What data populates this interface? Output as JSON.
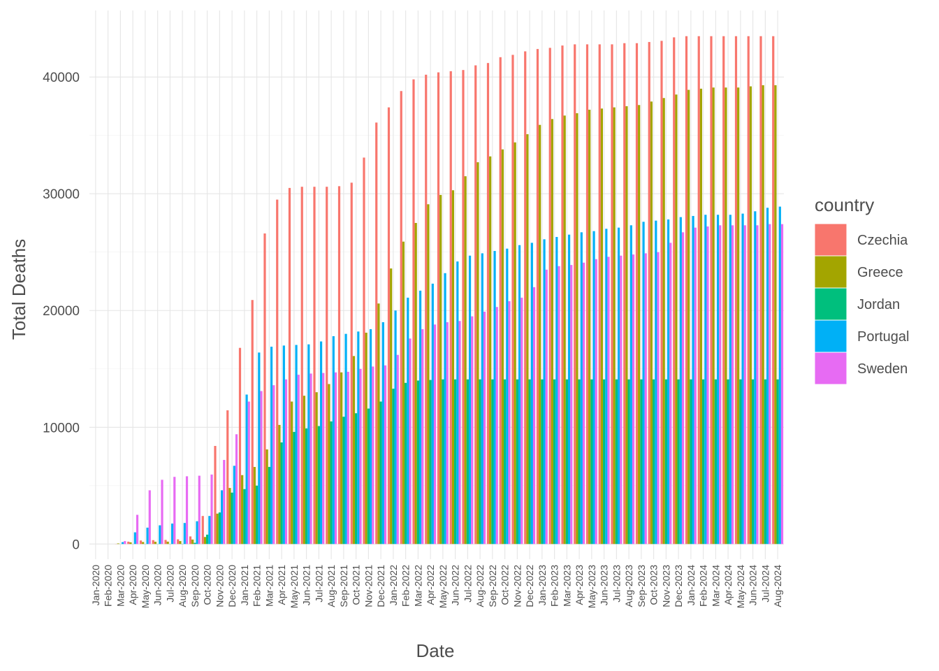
{
  "chart_data": {
    "type": "bar",
    "x_label": "Date",
    "y_label": "Total Deaths",
    "legend_title": "country",
    "legend_position": "right",
    "grid": true,
    "categories": [
      "Jan-2020",
      "Feb-2020",
      "Mar-2020",
      "Apr-2020",
      "May-2020",
      "Jun-2020",
      "Jul-2020",
      "Aug-2020",
      "Sep-2020",
      "Oct-2020",
      "Nov-2020",
      "Dec-2020",
      "Jan-2021",
      "Feb-2021",
      "Mar-2021",
      "Apr-2021",
      "May-2021",
      "Jun-2021",
      "Jul-2021",
      "Aug-2021",
      "Sep-2021",
      "Oct-2021",
      "Nov-2021",
      "Dec-2021",
      "Jan-2022",
      "Feb-2022",
      "Mar-2022",
      "Apr-2022",
      "May-2022",
      "Jun-2022",
      "Jul-2022",
      "Aug-2022",
      "Sep-2022",
      "Oct-2022",
      "Nov-2022",
      "Dec-2022",
      "Jan-2023",
      "Feb-2023",
      "Mar-2023",
      "Apr-2023",
      "May-2023",
      "Jun-2023",
      "Jul-2023",
      "Aug-2023",
      "Sep-2023",
      "Oct-2023",
      "Nov-2023",
      "Dec-2023",
      "Jan-2024",
      "Feb-2024",
      "Mar-2024",
      "Apr-2024",
      "May-2024",
      "Jun-2024",
      "Jul-2024",
      "Aug-2024"
    ],
    "series": [
      {
        "name": "Czechia",
        "color": "#F8766D",
        "values": [
          0,
          0,
          10,
          200,
          300,
          330,
          350,
          400,
          650,
          2400,
          8400,
          11450,
          16800,
          20900,
          26600,
          29500,
          30500,
          30600,
          30600,
          30600,
          30650,
          30950,
          33100,
          36100,
          37400,
          38800,
          39800,
          40200,
          40400,
          40500,
          40600,
          41000,
          41200,
          41700,
          41900,
          42200,
          42400,
          42500,
          42700,
          42800,
          42800,
          42800,
          42800,
          42900,
          42900,
          43000,
          43100,
          43400,
          43500,
          43500,
          43500,
          43500,
          43500,
          43500,
          43500,
          43500
        ]
      },
      {
        "name": "Greece",
        "color": "#A3A500",
        "values": [
          0,
          0,
          50,
          140,
          170,
          190,
          200,
          250,
          380,
          600,
          2600,
          4800,
          5900,
          6600,
          8100,
          10200,
          12200,
          12700,
          13000,
          13700,
          14700,
          16100,
          18100,
          20600,
          23600,
          25900,
          27500,
          29100,
          29900,
          30300,
          31500,
          32700,
          33200,
          33800,
          34400,
          35100,
          35900,
          36400,
          36700,
          36900,
          37200,
          37300,
          37400,
          37500,
          37600,
          37900,
          38200,
          38500,
          38900,
          39000,
          39100,
          39100,
          39100,
          39200,
          39300,
          39300
        ]
      },
      {
        "name": "Jordan",
        "color": "#00BF7D",
        "values": [
          0,
          0,
          5,
          8,
          9,
          10,
          11,
          15,
          100,
          800,
          2700,
          4400,
          4700,
          5000,
          6600,
          8700,
          9600,
          9900,
          10100,
          10500,
          10900,
          11200,
          11600,
          12200,
          13300,
          13800,
          14000,
          14050,
          14100,
          14100,
          14100,
          14100,
          14100,
          14100,
          14100,
          14100,
          14100,
          14100,
          14100,
          14100,
          14100,
          14100,
          14100,
          14100,
          14100,
          14100,
          14100,
          14100,
          14100,
          14100,
          14100,
          14100,
          14100,
          14100,
          14100,
          14100
        ]
      },
      {
        "name": "Portugal",
        "color": "#00B0F6",
        "values": [
          0,
          0,
          160,
          1000,
          1400,
          1600,
          1750,
          1800,
          1950,
          2400,
          4600,
          6700,
          12800,
          16400,
          16900,
          17000,
          17050,
          17100,
          17350,
          17800,
          18000,
          18200,
          18400,
          19000,
          20000,
          21100,
          21700,
          22300,
          23200,
          24200,
          24700,
          24900,
          25100,
          25300,
          25600,
          25800,
          26100,
          26300,
          26500,
          26700,
          26800,
          27000,
          27100,
          27300,
          27600,
          27700,
          27800,
          28000,
          28100,
          28200,
          28200,
          28200,
          28300,
          28500,
          28800,
          28900
        ]
      },
      {
        "name": "Sweden",
        "color": "#E76BF3",
        "values": [
          0,
          0,
          250,
          2500,
          4600,
          5500,
          5750,
          5800,
          5850,
          5950,
          7200,
          9400,
          12200,
          13100,
          13600,
          14100,
          14500,
          14600,
          14650,
          14700,
          14750,
          15000,
          15200,
          15300,
          16200,
          17600,
          18400,
          18800,
          19000,
          19100,
          19500,
          19900,
          20300,
          20800,
          21100,
          22000,
          23500,
          23800,
          23900,
          24100,
          24400,
          24600,
          24700,
          24800,
          24900,
          25000,
          25800,
          26700,
          27100,
          27200,
          27300,
          27300,
          27300,
          27300,
          27400,
          27400
        ]
      }
    ],
    "ylim": [
      -1300,
      45700
    ],
    "yticks": [
      0,
      10000,
      20000,
      30000,
      40000
    ]
  }
}
